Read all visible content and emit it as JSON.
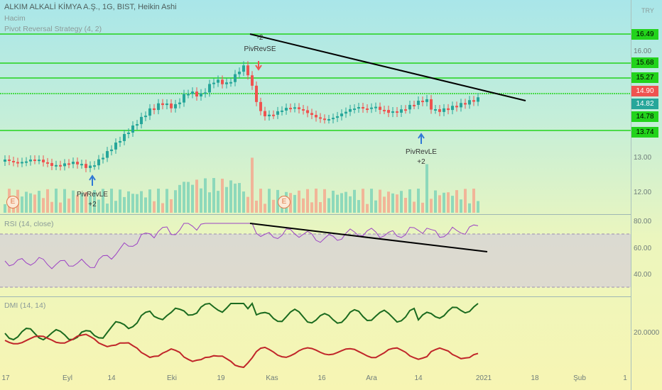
{
  "header": {
    "symbol_title": "ALKIM ALKALİ KİMYA A.Ş., 1G, BIST, Heikin Ashi",
    "volume_label": "Hacim",
    "strategy_label": "Pivot Reversal Strategy (4, 2)",
    "currency": "TRY"
  },
  "price_axis": {
    "labels": [
      "16.00",
      "13.00",
      "12.00"
    ],
    "tags": [
      {
        "text": "16.49",
        "bg": "#22d31b",
        "fg": "#000000"
      },
      {
        "text": "15.68",
        "bg": "#22d31b",
        "fg": "#000000"
      },
      {
        "text": "15.27",
        "bg": "#22d31b",
        "fg": "#000000"
      },
      {
        "text": "14.90",
        "bg": "#ef5350",
        "fg": "#ffffff"
      },
      {
        "text": "14.82",
        "bg": "#26a69a",
        "fg": "#ffffff"
      },
      {
        "text": "14.78",
        "bg": "#22d31b",
        "fg": "#000000"
      },
      {
        "text": "13.74",
        "bg": "#22d31b",
        "fg": "#000000"
      }
    ]
  },
  "annotations": {
    "short_entry": {
      "label": "PivRevSE",
      "qty": "-2"
    },
    "long_entry_1": {
      "label": "PivRevLE",
      "qty": "+2"
    },
    "long_entry_2": {
      "label": "PivRevLE",
      "qty": "+2"
    },
    "earnings_badge": "E"
  },
  "rsi": {
    "legend": "RSI (14, close)",
    "axis": [
      "80.00",
      "60.00",
      "40.00"
    ]
  },
  "dmi": {
    "legend": "DMI (14, 14)",
    "axis": [
      "20.0000"
    ]
  },
  "time_axis": [
    "17",
    "Eyl",
    "14",
    "Eki",
    "19",
    "Kas",
    "16",
    "Ara",
    "14",
    "2021",
    "18",
    "Şub",
    "1"
  ],
  "colors": {
    "up": "#26a69a",
    "down": "#ef5350",
    "support_line": "#22d31b",
    "rsi_line": "#9c42c4",
    "dmi_plus": "#1b6b1f",
    "dmi_minus": "#c0262a",
    "trendline": "#000000"
  }
}
